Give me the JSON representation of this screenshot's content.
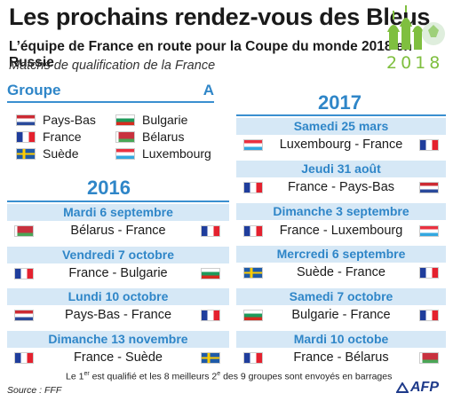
{
  "header": {
    "title": "Les prochains rendez-vous des Bleus",
    "subtitle": "L’équipe de France en route pour la Coupe du monde 2018 en Russie",
    "italic_line": "Matchs de qualification de la France",
    "logo_year": "2018"
  },
  "groupe": {
    "label": "Groupe",
    "letter": "A",
    "teams_left": [
      {
        "name": "Pays-Bas",
        "flag": "nl-flag"
      },
      {
        "name": "France",
        "flag": "fr-flag"
      },
      {
        "name": "Suède",
        "flag": "se-flag"
      }
    ],
    "teams_right": [
      {
        "name": "Bulgarie",
        "flag": "bg-flag"
      },
      {
        "name": "Bélarus",
        "flag": "by-flag"
      },
      {
        "name": "Luxembourg",
        "flag": "lu-flag"
      }
    ]
  },
  "year_2016": {
    "label": "2016",
    "matches": [
      {
        "date": "Mardi 6 septembre",
        "fixture": "Bélarus - France",
        "home_flag": "by",
        "away_flag": "fr"
      },
      {
        "date": "Vendredi 7 octobre",
        "fixture": "France - Bulgarie",
        "home_flag": "fr",
        "away_flag": "bg"
      },
      {
        "date": "Lundi 10 octobre",
        "fixture": "Pays-Bas - France",
        "home_flag": "nl",
        "away_flag": "fr"
      },
      {
        "date": "Dimanche 13 novembre",
        "fixture": "France - Suède",
        "home_flag": "fr",
        "away_flag": "se"
      }
    ]
  },
  "year_2017": {
    "label": "2017",
    "matches": [
      {
        "date": "Samedi 25 mars",
        "fixture": "Luxembourg - France",
        "home_flag": "lu",
        "away_flag": "fr"
      },
      {
        "date": "Jeudi 31 août",
        "fixture": "France - Pays-Bas",
        "home_flag": "fr",
        "away_flag": "nl"
      },
      {
        "date": "Dimanche 3 septembre",
        "fixture": "France - Luxembourg",
        "home_flag": "fr",
        "away_flag": "lu"
      },
      {
        "date": "Mercredi 6 septembre",
        "fixture": "Suède - France",
        "home_flag": "se",
        "away_flag": "fr"
      },
      {
        "date": "Samedi 7 octobre",
        "fixture": "Bulgarie - France",
        "home_flag": "bg",
        "away_flag": "fr"
      },
      {
        "date": "Mardi 10 octobe",
        "fixture": "France - Bélarus",
        "home_flag": "fr",
        "away_flag": "by"
      }
    ]
  },
  "footer": {
    "footnote_a": "Le 1",
    "footnote_sup1": "er",
    "footnote_b": " est qualifié et les 8 meilleurs 2",
    "footnote_sup2": "e",
    "footnote_c": " des 9 groupes sont envoyés en barrages",
    "source": "Source : FFF",
    "agency": "AFP"
  },
  "colors": {
    "accent": "#2f86c8",
    "band": "#d6e8f6",
    "logo_green": "#7fbf3f"
  }
}
